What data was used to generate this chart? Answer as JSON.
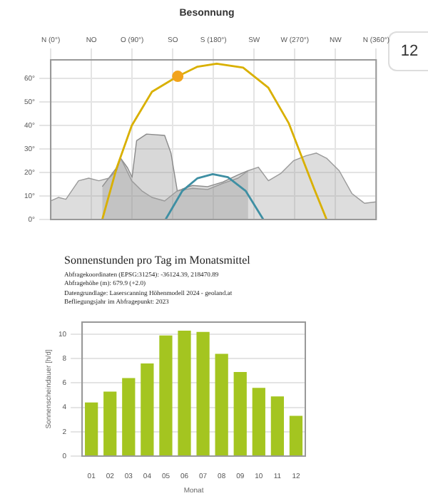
{
  "chart_data": [
    {
      "type": "line",
      "title": "Besonnung",
      "annotations": [
        "12"
      ],
      "xlim": [
        0,
        360
      ],
      "xticks": [
        {
          "value": 0,
          "label": "N (0°)"
        },
        {
          "value": 45,
          "label": "NO"
        },
        {
          "value": 90,
          "label": "O (90°)"
        },
        {
          "value": 135,
          "label": "SO"
        },
        {
          "value": 180,
          "label": "S (180°)"
        },
        {
          "value": 225,
          "label": "SW"
        },
        {
          "value": 270,
          "label": "W (270°)"
        },
        {
          "value": 315,
          "label": "NW"
        },
        {
          "value": 360,
          "label": "N (360°)"
        }
      ],
      "ylim": [
        0,
        68
      ],
      "yticks": [
        {
          "value": 0,
          "label": "0°"
        },
        {
          "value": 10,
          "label": "10°"
        },
        {
          "value": 20,
          "label": "20°"
        },
        {
          "value": 30,
          "label": "30°"
        },
        {
          "value": 40,
          "label": "40°"
        },
        {
          "value": 50,
          "label": "50°"
        },
        {
          "value": 60,
          "label": "60°"
        }
      ],
      "grid": true,
      "series": [
        {
          "type": "area",
          "color": "#8a8a8a",
          "x": [
            57,
            72.8,
            77.3,
            85,
            90,
            95,
            106,
            126,
            133,
            140,
            156.8,
            173.6,
            190.4,
            207.2,
            218.4
          ],
          "values": [
            14,
            22,
            26.1,
            22,
            18,
            33.6,
            36.4,
            35.8,
            28.3,
            12.2,
            14.5,
            14,
            16,
            19,
            20.8
          ]
        },
        {
          "type": "area",
          "color": "#9a9a9a",
          "x": [
            0,
            8.4,
            16.8,
            30.8,
            42,
            53.2,
            64.4,
            72.8,
            77.3,
            82.9,
            89.6,
            100.8,
            112,
            126,
            140,
            156.8,
            173.6,
            190.4,
            207.2,
            218.4,
            229.6,
            240.8,
            254.8,
            268.8,
            282.8,
            294,
            305.2,
            319.1,
            333.1,
            347.1,
            360
          ],
          "values": [
            7.9,
            9.4,
            8.6,
            16.5,
            17.6,
            16.5,
            17.6,
            20.8,
            26.1,
            21.8,
            16.5,
            12.2,
            9.4,
            7.9,
            12.2,
            13.3,
            12.8,
            15.4,
            17.6,
            20.8,
            22.3,
            16.5,
            19.7,
            25.1,
            27.2,
            28.3,
            26.1,
            20.8,
            11.1,
            6.9,
            7.5
          ]
        },
        {
          "type": "line",
          "color": "#d9b000",
          "x": [
            57,
            72.8,
            89.6,
            112,
            140.5,
            162.4,
            183.6,
            212.8,
            240.8,
            263.2,
            277.2,
            291.2,
            305.2
          ],
          "values": [
            0,
            21.8,
            40,
            54.4,
            61,
            65.1,
            66.4,
            64.7,
            56.1,
            41.1,
            27.2,
            13.3,
            0
          ]
        },
        {
          "type": "line",
          "color": "#3e8fa3",
          "x": [
            127,
            145.6,
            162.4,
            179.2,
            196,
            215.6,
            235.2
          ],
          "values": [
            0,
            12.2,
            17.6,
            19.3,
            18,
            12.2,
            0
          ]
        },
        {
          "type": "scatter",
          "color": "#f2a31b",
          "marker": "circle",
          "x": [
            140.5
          ],
          "values": [
            61
          ]
        }
      ]
    },
    {
      "type": "bar",
      "title": "Sonnenstunden pro Tag im Monatsmittel",
      "annotations": [
        "Abfragekoordinaten (EPSG:31254): -36124.39, 218470.89",
        "Abfragehöhe (m): 679.9 (+2.0)",
        "Datengrundlage: Laserscanning Höhenmodell 2024 - geoland.at",
        "Befliegungsjahr im Abfragepunkt: 2023"
      ],
      "xlabel": "Monat",
      "ylabel": "Sonnenscheindauer [h/d]",
      "categories": [
        "01",
        "02",
        "03",
        "04",
        "05",
        "06",
        "07",
        "08",
        "09",
        "10",
        "11",
        "12"
      ],
      "values": [
        4.4,
        5.3,
        6.4,
        7.6,
        9.9,
        10.3,
        10.2,
        8.4,
        6.9,
        5.6,
        4.9,
        3.3
      ],
      "color": "#a4c520",
      "ylim": [
        0,
        11
      ],
      "yticks": [
        0,
        2,
        4,
        6,
        8,
        10
      ],
      "grid": "y"
    }
  ]
}
